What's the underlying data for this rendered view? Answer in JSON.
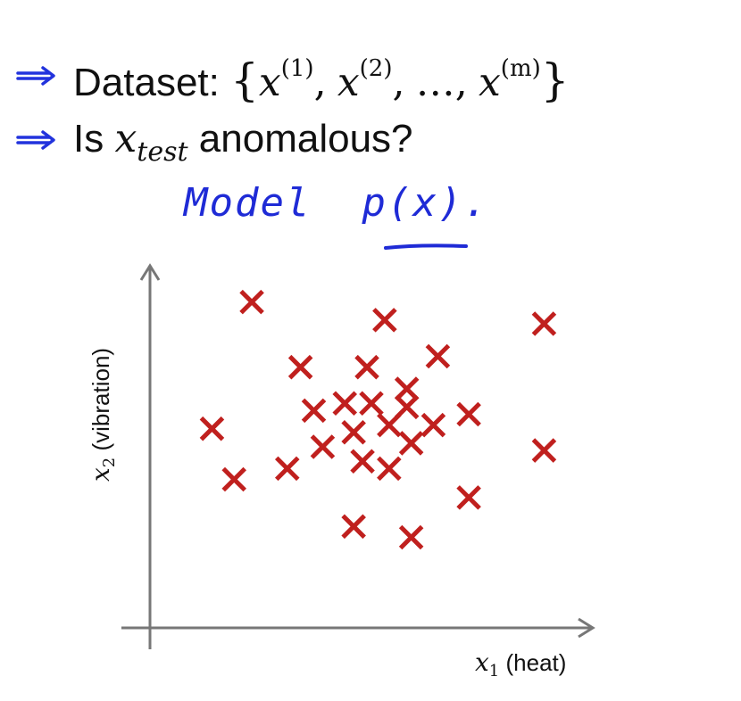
{
  "slide": {
    "line1": {
      "label": "Dataset:",
      "set_open": "{",
      "x": "x",
      "sup1": "(1)",
      "sup2": "(2)",
      "sep": ",",
      "ellipsis": "…",
      "supm": "(m)",
      "set_close": "}"
    },
    "line2": {
      "prefix": "Is",
      "x": "x",
      "subscript": "test",
      "suffix": "anomalous?"
    },
    "handwriting": {
      "text": "Model  p(x).",
      "color": "#1f2bd6"
    }
  },
  "chart_data": {
    "type": "scatter",
    "marker": "x",
    "marker_color": "#c0201e",
    "xlabel": {
      "var": "x",
      "sub": "1",
      "text": "(heat)"
    },
    "ylabel": {
      "var": "x",
      "sub": "2",
      "text": "(vibration)"
    },
    "xlim": [
      0,
      10
    ],
    "ylim": [
      0,
      10
    ],
    "grid": false,
    "points": [
      [
        2.3,
        9.0
      ],
      [
        5.3,
        8.5
      ],
      [
        8.9,
        8.4
      ],
      [
        3.4,
        7.2
      ],
      [
        4.9,
        7.2
      ],
      [
        6.5,
        7.5
      ],
      [
        5.8,
        6.6
      ],
      [
        3.7,
        6.0
      ],
      [
        4.4,
        6.2
      ],
      [
        5.0,
        6.2
      ],
      [
        5.8,
        6.1
      ],
      [
        1.4,
        5.5
      ],
      [
        4.6,
        5.4
      ],
      [
        5.4,
        5.6
      ],
      [
        6.4,
        5.6
      ],
      [
        7.2,
        5.9
      ],
      [
        3.9,
        5.0
      ],
      [
        5.9,
        5.1
      ],
      [
        8.9,
        4.9
      ],
      [
        4.8,
        4.6
      ],
      [
        3.1,
        4.4
      ],
      [
        5.4,
        4.4
      ],
      [
        1.9,
        4.1
      ],
      [
        7.2,
        3.6
      ],
      [
        4.6,
        2.8
      ],
      [
        5.9,
        2.5
      ]
    ]
  }
}
